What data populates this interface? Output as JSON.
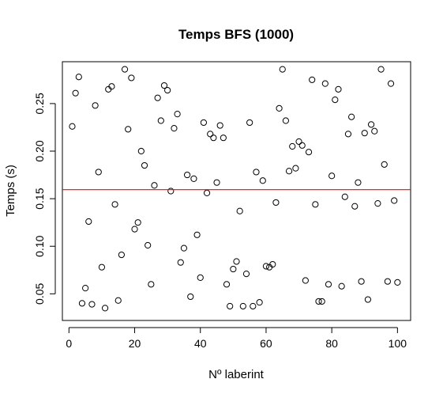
{
  "chart_data": {
    "type": "scatter",
    "title": "Temps BFS (1000)",
    "xlabel": "Nº laberint",
    "ylabel": "Temps (s)",
    "xlim": [
      -2,
      104
    ],
    "ylim": [
      0.022,
      0.294
    ],
    "x_ticks": [
      {
        "value": 0,
        "label": "0"
      },
      {
        "value": 20,
        "label": "20"
      },
      {
        "value": 40,
        "label": "40"
      },
      {
        "value": 60,
        "label": "60"
      },
      {
        "value": 80,
        "label": "80"
      },
      {
        "value": 100,
        "label": "100"
      }
    ],
    "y_ticks": [
      {
        "value": 0.05,
        "label": "0.05"
      },
      {
        "value": 0.1,
        "label": "0.10"
      },
      {
        "value": 0.15,
        "label": "0.15"
      },
      {
        "value": 0.2,
        "label": "0.20"
      },
      {
        "value": 0.25,
        "label": "0.25"
      }
    ],
    "grid": false,
    "point_marker": "open-circle",
    "series": [
      {
        "x": [
          1,
          2,
          3,
          4,
          5,
          6,
          7,
          8,
          9,
          10,
          11,
          12,
          13,
          14,
          15,
          16,
          17,
          18,
          19,
          20,
          21,
          22,
          23,
          24,
          25,
          26,
          27,
          28,
          29,
          30,
          31,
          32,
          33,
          34,
          35,
          36,
          37,
          38,
          39,
          40,
          41,
          42,
          43,
          44,
          45,
          46,
          47,
          48,
          49,
          50,
          51,
          52,
          53,
          54,
          55,
          56,
          57,
          58,
          59,
          60,
          61,
          62,
          63,
          64,
          65,
          66,
          67,
          68,
          69,
          70,
          71,
          72,
          73,
          74,
          75,
          76,
          77,
          78,
          79,
          80,
          81,
          82,
          83,
          84,
          85,
          86,
          87,
          88,
          89,
          90,
          91,
          92,
          93,
          94,
          95,
          96,
          97,
          98,
          99,
          100
        ],
        "y": [
          0.226,
          0.261,
          0.278,
          0.04,
          0.056,
          0.126,
          0.039,
          0.248,
          0.178,
          0.078,
          0.035,
          0.265,
          0.268,
          0.144,
          0.043,
          0.091,
          0.286,
          0.223,
          0.277,
          0.118,
          0.125,
          0.2,
          0.185,
          0.101,
          0.06,
          0.164,
          0.256,
          0.232,
          0.269,
          0.264,
          0.158,
          0.224,
          0.239,
          0.083,
          0.098,
          0.175,
          0.047,
          0.171,
          0.112,
          0.067,
          0.23,
          0.156,
          0.218,
          0.214,
          0.167,
          0.227,
          0.214,
          0.06,
          0.037,
          0.076,
          0.084,
          0.137,
          0.037,
          0.071,
          0.23,
          0.037,
          0.178,
          0.041,
          0.169,
          0.079,
          0.078,
          0.081,
          0.146,
          0.245,
          0.286,
          0.232,
          0.179,
          0.205,
          0.182,
          0.21,
          0.206,
          0.064,
          0.199,
          0.275,
          0.144,
          0.042,
          0.042,
          0.271,
          0.06,
          0.174,
          0.254,
          0.265,
          0.058,
          0.152,
          0.218,
          0.236,
          0.142,
          0.167,
          0.063,
          0.219,
          0.044,
          0.228,
          0.221,
          0.145,
          0.286,
          0.186,
          0.063,
          0.271,
          0.148,
          0.062
        ]
      }
    ],
    "reference_line": {
      "orientation": "horizontal",
      "value": 0.1595,
      "color": "#ff0000"
    }
  }
}
